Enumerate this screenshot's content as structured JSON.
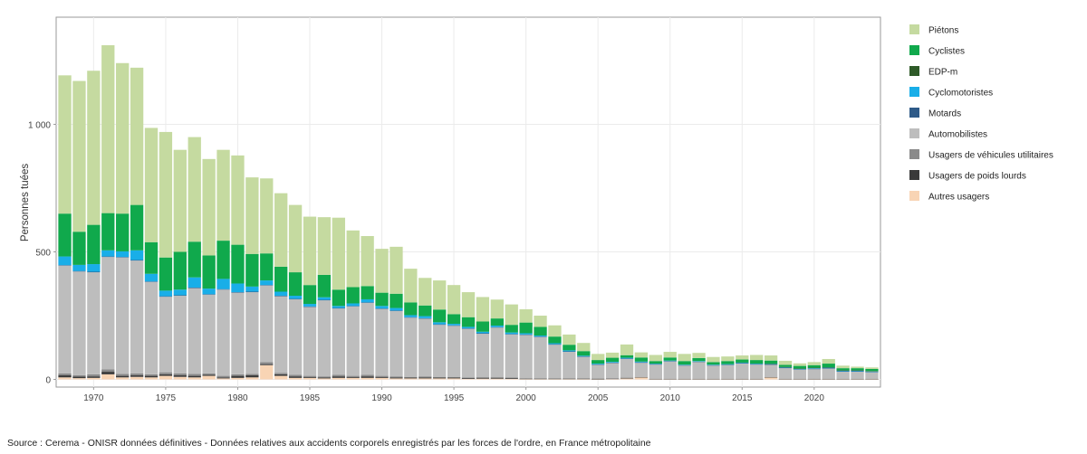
{
  "chart_data": {
    "type": "bar",
    "stacked": true,
    "ylabel": "Personnes tuées",
    "xlabel": "",
    "ylim": [
      -30,
      1420
    ],
    "xlim": [
      1967.4,
      2024.6
    ],
    "yticks": [
      0,
      500,
      1000
    ],
    "ytick_labels": [
      "0",
      "500",
      "1 000"
    ],
    "xticks": [
      1970,
      1975,
      1980,
      1985,
      1990,
      1995,
      2000,
      2005,
      2010,
      2015,
      2020
    ],
    "xtick_labels": [
      "1970",
      "1975",
      "1980",
      "1985",
      "1990",
      "1995",
      "2000",
      "2005",
      "2010",
      "2015",
      "2020"
    ],
    "grid": true,
    "legend_position": "right",
    "years": [
      1968,
      1969,
      1970,
      1971,
      1972,
      1973,
      1974,
      1975,
      1976,
      1977,
      1978,
      1979,
      1980,
      1981,
      1982,
      1983,
      1984,
      1985,
      1986,
      1987,
      1988,
      1989,
      1990,
      1991,
      1992,
      1993,
      1994,
      1995,
      1996,
      1997,
      1998,
      1999,
      2000,
      2001,
      2002,
      2003,
      2004,
      2005,
      2006,
      2007,
      2008,
      2009,
      2010,
      2011,
      2012,
      2013,
      2014,
      2015,
      2016,
      2017,
      2018,
      2019,
      2020,
      2021,
      2022,
      2023,
      2024
    ],
    "series": [
      {
        "name": "Autres usagers",
        "color": "#f8d4b4",
        "values": [
          8,
          5,
          6,
          20,
          8,
          10,
          8,
          14,
          10,
          8,
          14,
          4,
          6,
          8,
          56,
          14,
          6,
          6,
          4,
          6,
          6,
          6,
          6,
          4,
          4,
          4,
          4,
          4,
          2,
          3,
          3,
          2,
          1,
          1,
          1,
          1,
          1,
          1,
          2,
          4,
          8,
          1,
          1,
          1,
          1,
          1,
          1,
          1,
          1,
          8,
          1,
          1,
          1,
          1,
          1,
          1,
          1
        ]
      },
      {
        "name": "Usagers de poids lourds",
        "color": "#3a3a3a",
        "values": [
          8,
          6,
          6,
          10,
          6,
          6,
          6,
          6,
          6,
          6,
          4,
          4,
          8,
          8,
          4,
          6,
          6,
          4,
          4,
          6,
          4,
          6,
          4,
          4,
          3,
          4,
          3,
          3,
          3,
          3,
          3,
          3,
          2,
          2,
          2,
          2,
          2,
          1,
          1,
          1,
          1,
          1,
          1,
          1,
          1,
          1,
          1,
          1,
          1,
          1,
          1,
          1,
          1,
          1,
          1,
          1,
          1
        ]
      },
      {
        "name": "Usagers de véhicules utilitaires",
        "color": "#8a8a8a",
        "values": [
          8,
          6,
          8,
          10,
          8,
          8,
          6,
          8,
          8,
          8,
          6,
          6,
          6,
          6,
          8,
          6,
          6,
          4,
          4,
          6,
          4,
          6,
          4,
          4,
          3,
          4,
          3,
          3,
          3,
          3,
          3,
          3,
          2,
          2,
          2,
          2,
          2,
          2,
          2,
          2,
          1,
          1,
          1,
          1,
          1,
          1,
          1,
          1,
          1,
          1,
          1,
          1,
          1,
          1,
          1,
          1,
          1
        ]
      },
      {
        "name": "Automobilistes",
        "color": "#bdbdbd",
        "values": [
          422,
          406,
          400,
          440,
          456,
          442,
          362,
          296,
          304,
          336,
          308,
          338,
          320,
          320,
          300,
          300,
          296,
          270,
          298,
          260,
          272,
          282,
          262,
          256,
          232,
          226,
          204,
          200,
          190,
          170,
          194,
          168,
          170,
          162,
          132,
          104,
          84,
          54,
          60,
          74,
          56,
          56,
          68,
          52,
          66,
          52,
          54,
          60,
          56,
          48,
          42,
          36,
          38,
          40,
          28,
          28,
          26
        ]
      },
      {
        "name": "Motards",
        "color": "#2e5a88",
        "values": [
          2,
          2,
          2,
          2,
          2,
          2,
          2,
          2,
          2,
          2,
          2,
          2,
          2,
          2,
          2,
          2,
          2,
          2,
          2,
          2,
          2,
          2,
          2,
          2,
          2,
          2,
          2,
          2,
          2,
          2,
          2,
          2,
          1,
          1,
          1,
          1,
          1,
          1,
          1,
          1,
          1,
          1,
          1,
          1,
          1,
          1,
          1,
          1,
          1,
          1,
          1,
          1,
          1,
          1,
          1,
          1,
          1
        ]
      },
      {
        "name": "Cyclomotoristes",
        "color": "#19aee8",
        "values": [
          34,
          24,
          30,
          24,
          22,
          38,
          30,
          22,
          22,
          40,
          22,
          40,
          34,
          20,
          18,
          16,
          12,
          10,
          10,
          8,
          10,
          12,
          10,
          10,
          8,
          8,
          8,
          6,
          6,
          6,
          6,
          6,
          5,
          4,
          4,
          4,
          3,
          3,
          3,
          3,
          3,
          2,
          2,
          2,
          2,
          2,
          2,
          2,
          2,
          2,
          2,
          2,
          2,
          2,
          2,
          2,
          1
        ]
      },
      {
        "name": "EDP-m",
        "color": "#2e5a28",
        "values": [
          0,
          0,
          0,
          0,
          0,
          0,
          0,
          0,
          0,
          0,
          0,
          0,
          0,
          0,
          0,
          0,
          0,
          0,
          0,
          0,
          0,
          0,
          0,
          0,
          0,
          0,
          0,
          0,
          0,
          0,
          0,
          0,
          0,
          0,
          0,
          0,
          0,
          0,
          0,
          0,
          0,
          0,
          0,
          0,
          0,
          0,
          0,
          0,
          0,
          1,
          1,
          1,
          2,
          2,
          2,
          2,
          2
        ]
      },
      {
        "name": "Cyclistes",
        "color": "#10a94c",
        "values": [
          168,
          130,
          154,
          146,
          148,
          178,
          124,
          130,
          148,
          140,
          130,
          150,
          152,
          128,
          106,
          98,
          92,
          74,
          88,
          64,
          64,
          52,
          52,
          56,
          50,
          42,
          50,
          38,
          38,
          40,
          28,
          30,
          42,
          34,
          26,
          22,
          18,
          14,
          16,
          10,
          16,
          10,
          12,
          14,
          12,
          10,
          12,
          12,
          14,
          12,
          8,
          10,
          10,
          14,
          8,
          8,
          8
        ]
      },
      {
        "name": "Piétons",
        "color": "#c5daa0",
        "values": [
          542,
          591,
          604,
          658,
          590,
          538,
          448,
          492,
          400,
          410,
          378,
          356,
          350,
          300,
          294,
          288,
          264,
          268,
          226,
          282,
          222,
          196,
          172,
          184,
          132,
          108,
          114,
          114,
          98,
          96,
          74,
          80,
          52,
          44,
          44,
          40,
          32,
          24,
          20,
          42,
          20,
          24,
          22,
          28,
          20,
          20,
          18,
          16,
          20,
          20,
          16,
          10,
          12,
          18,
          10,
          6,
          6
        ]
      }
    ]
  },
  "legend": {
    "title": "",
    "items": [
      {
        "label": "Piétons",
        "color": "#c5daa0"
      },
      {
        "label": "Cyclistes",
        "color": "#10a94c"
      },
      {
        "label": "EDP-m",
        "color": "#2e5a28"
      },
      {
        "label": "Cyclomotoristes",
        "color": "#19aee8"
      },
      {
        "label": "Motards",
        "color": "#2e5a88"
      },
      {
        "label": "Automobilistes",
        "color": "#bdbdbd"
      },
      {
        "label": "Usagers de véhicules utilitaires",
        "color": "#8a8a8a"
      },
      {
        "label": "Usagers de poids lourds",
        "color": "#3a3a3a"
      },
      {
        "label": "Autres usagers",
        "color": "#f8d4b4"
      }
    ]
  },
  "source_text": "Source : Cerema - ONISR données définitives - Données relatives aux accidents corporels enregistrés par les forces de l'ordre, en France métropolitaine"
}
